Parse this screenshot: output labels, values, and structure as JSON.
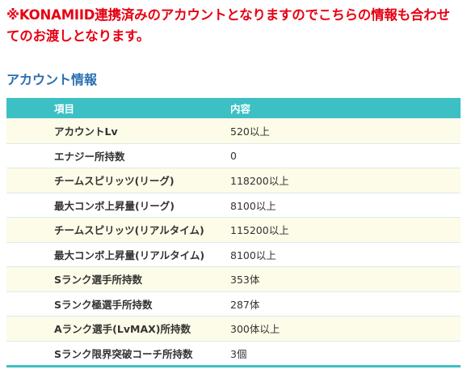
{
  "notice": {
    "text": "※KONAMIID連携済みのアカウントとなりますのでこちらの情報も合わせてのお渡しとなります。"
  },
  "section": {
    "title": "アカウント情報"
  },
  "table": {
    "headers": {
      "item": "項目",
      "content": "内容"
    },
    "rows": [
      {
        "item": "アカウントLv",
        "value": "520以上"
      },
      {
        "item": "エナジー所持数",
        "value": "0"
      },
      {
        "item": "チームスピリッツ(リーグ)",
        "value": "118200以上"
      },
      {
        "item": "最大コンボ上昇量(リーグ)",
        "value": "8100以上"
      },
      {
        "item": "チームスピリッツ(リアルタイム)",
        "value": "115200以上"
      },
      {
        "item": "最大コンボ上昇量(リアルタイム)",
        "value": "8100以上"
      },
      {
        "item": "Sランク選手所持数",
        "value": "353体"
      },
      {
        "item": "Sランク極選手所持数",
        "value": "287体"
      },
      {
        "item": "Aランク選手(LvMAX)所持数",
        "value": "300体以上"
      },
      {
        "item": "Sランク限界突破コーチ所持数",
        "value": "3個"
      }
    ]
  },
  "colors": {
    "notice": "#e60012",
    "section_title": "#2a6fb0",
    "header_bg": "#3cc0c3",
    "row_odd_bg": "#fdfce8",
    "row_even_bg": "#ffffff"
  }
}
